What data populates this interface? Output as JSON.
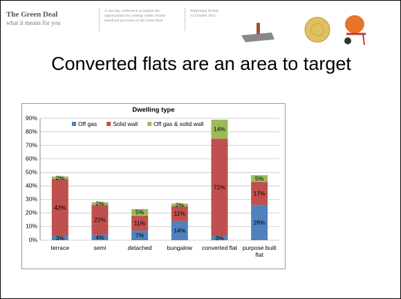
{
  "header": {
    "brand": "The Green Deal",
    "tagline": "what it means for you",
    "description": "A one-day conference to explore the opportunities for creating viable, locally beneficial provision of the Green Deal",
    "venue": "Watershed, Bristol",
    "date": "13 October 2011"
  },
  "slide_title": "Converted flats are an area to target",
  "chart_data": {
    "type": "stacked-bar",
    "title": "Dwelling type",
    "categories": [
      "terrace",
      "semi",
      "detached",
      "bungalow",
      "converted flat",
      "purpose built flat"
    ],
    "series": [
      {
        "name": "Off gas",
        "color": "#4f81bd",
        "values": [
          3,
          4,
          7,
          14,
          3,
          26
        ],
        "value_labels": [
          "3%",
          "4%",
          "7%",
          "14%",
          "3%",
          "26%"
        ]
      },
      {
        "name": "Solid wall",
        "color": "#c0504d",
        "values": [
          42,
          22,
          11,
          11,
          72,
          17
        ],
        "value_labels": [
          "42%",
          "22%",
          "11%",
          "11%",
          "72%",
          "17%"
        ]
      },
      {
        "name": "Off gas & solid wall",
        "color": "#9bbb59",
        "values": [
          2,
          2,
          5,
          2,
          14,
          5
        ],
        "value_labels": [
          "2%",
          "2%",
          "5%",
          "2%",
          "14%",
          "5%"
        ]
      }
    ],
    "ylim": [
      0,
      90
    ],
    "yticks": [
      {
        "value": 0,
        "label": "0%"
      },
      {
        "value": 10,
        "label": "10%"
      },
      {
        "value": 20,
        "label": "20%"
      },
      {
        "value": 30,
        "label": "30%"
      },
      {
        "value": 40,
        "label": "40%"
      },
      {
        "value": 50,
        "label": "50%"
      },
      {
        "value": 60,
        "label": "60%"
      },
      {
        "value": 70,
        "label": "70%"
      },
      {
        "value": 80,
        "label": "80%"
      },
      {
        "value": 90,
        "label": "90%"
      }
    ],
    "grid": true,
    "legend": "top"
  }
}
